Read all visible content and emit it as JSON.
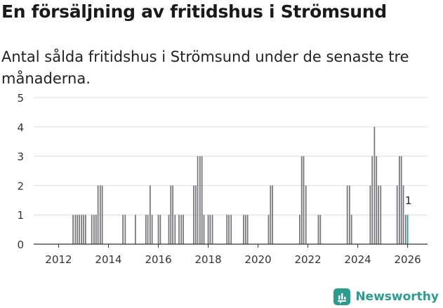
{
  "title": "En försäljning av fritidshus i Strömsund",
  "subtitle": "Antal sålda fritidshus i Strömsund under de senaste tre månaderna.",
  "brand": {
    "name": "Newsworthy",
    "icon": "newsworthy-logo-icon"
  },
  "colors": {
    "bar": "#77777b",
    "highlight": "#2a9d8f",
    "grid": "#dddddd",
    "axis": "#333333",
    "brand": "#2a9d8f"
  },
  "chart_data": {
    "type": "bar",
    "title": "En försäljning av fritidshus i Strömsund",
    "subtitle": "Antal sålda fritidshus i Strömsund under de senaste tre månaderna.",
    "xlabel": "",
    "ylabel": "",
    "xlim": [
      2011.0,
      2026.8
    ],
    "ylim": [
      0,
      5
    ],
    "yticks": [
      0,
      1,
      2,
      3,
      4,
      5
    ],
    "xticks": [
      2012,
      2014,
      2016,
      2018,
      2020,
      2022,
      2024,
      2026
    ],
    "xtick_labels": [
      "2012",
      "2014",
      "2016",
      "2018",
      "2020",
      "2022",
      "2024",
      "2026"
    ],
    "grid": true,
    "bar_width_years": 0.0833,
    "x": [
      2012.58,
      2012.67,
      2012.75,
      2012.83,
      2012.92,
      2013.0,
      2013.08,
      2013.33,
      2013.42,
      2013.5,
      2013.58,
      2013.67,
      2013.75,
      2014.58,
      2014.67,
      2015.08,
      2015.5,
      2015.58,
      2015.67,
      2015.75,
      2016.0,
      2016.08,
      2016.42,
      2016.5,
      2016.58,
      2016.67,
      2016.83,
      2016.92,
      2017.0,
      2017.42,
      2017.5,
      2017.58,
      2017.67,
      2017.75,
      2017.83,
      2018.0,
      2018.08,
      2018.17,
      2018.75,
      2018.83,
      2018.92,
      2019.42,
      2019.5,
      2019.58,
      2020.42,
      2020.5,
      2020.58,
      2021.67,
      2021.75,
      2021.83,
      2021.92,
      2022.42,
      2022.5,
      2023.58,
      2023.67,
      2023.75,
      2024.5,
      2024.58,
      2024.67,
      2024.75,
      2024.83,
      2024.92,
      2025.58,
      2025.67,
      2025.75,
      2025.83,
      2025.92,
      2026.0
    ],
    "values": [
      1,
      1,
      1,
      1,
      1,
      1,
      1,
      1,
      1,
      1,
      2,
      2,
      2,
      1,
      1,
      1,
      1,
      1,
      2,
      1,
      1,
      1,
      1,
      2,
      2,
      1,
      1,
      1,
      1,
      2,
      2,
      3,
      3,
      3,
      1,
      1,
      1,
      1,
      1,
      1,
      1,
      1,
      1,
      1,
      1,
      2,
      2,
      1,
      3,
      3,
      2,
      1,
      1,
      2,
      2,
      1,
      2,
      3,
      4,
      3,
      2,
      2,
      2,
      3,
      3,
      2,
      1,
      1
    ],
    "highlight_index": 67,
    "annotations": [
      {
        "x": 2026.0,
        "y": 1,
        "text": "1"
      }
    ]
  }
}
